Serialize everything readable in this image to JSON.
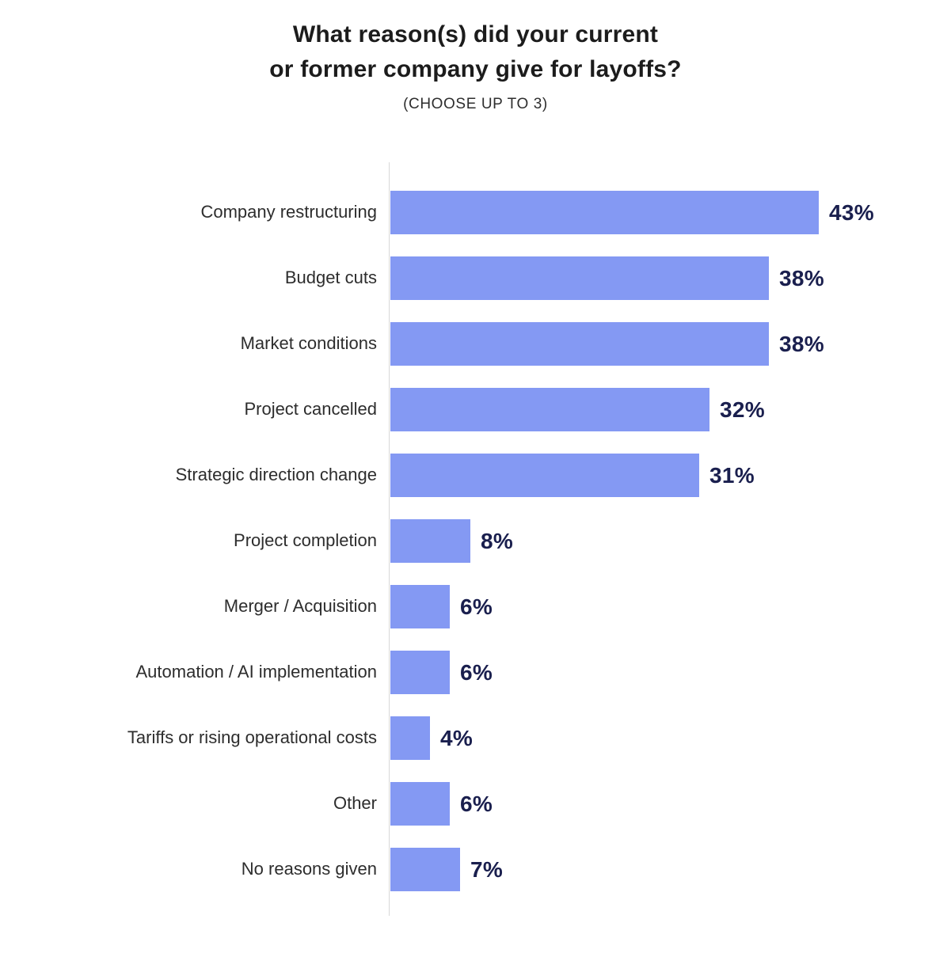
{
  "header": {
    "title_lines": [
      "What reason(s) did your current",
      "or former company give for layoffs?"
    ],
    "subtitle": "(CHOOSE UP TO 3)"
  },
  "chart_data": {
    "type": "bar",
    "orientation": "horizontal",
    "title": "What reason(s) did your current or former company give for layoffs?",
    "subtitle": "(CHOOSE UP TO 3)",
    "categories": [
      "Company restructuring",
      "Budget cuts",
      "Market conditions",
      "Project cancelled",
      "Strategic direction change",
      "Project completion",
      "Merger / Acquisition",
      "Automation / AI implementation",
      "Tariffs or rising operational costs",
      "Other",
      "No reasons given"
    ],
    "values": [
      43,
      38,
      38,
      32,
      31,
      8,
      6,
      6,
      4,
      6,
      7
    ],
    "value_labels": [
      "43%",
      "38%",
      "38%",
      "32%",
      "31%",
      "8%",
      "6%",
      "6%",
      "4%",
      "6%",
      "7%"
    ],
    "xlabel": "",
    "ylabel": "",
    "xlim": [
      0,
      50
    ],
    "grid": false,
    "legend": "none",
    "value_label_position": "end-of-bar",
    "colors": {
      "bar_fill": "#8499F3",
      "value_label": "#1A1F4E",
      "category_label": "#2D2D2D",
      "title": "#1C1C1C",
      "axis_line": "#D8D8D8",
      "background": "#FFFFFF"
    }
  }
}
